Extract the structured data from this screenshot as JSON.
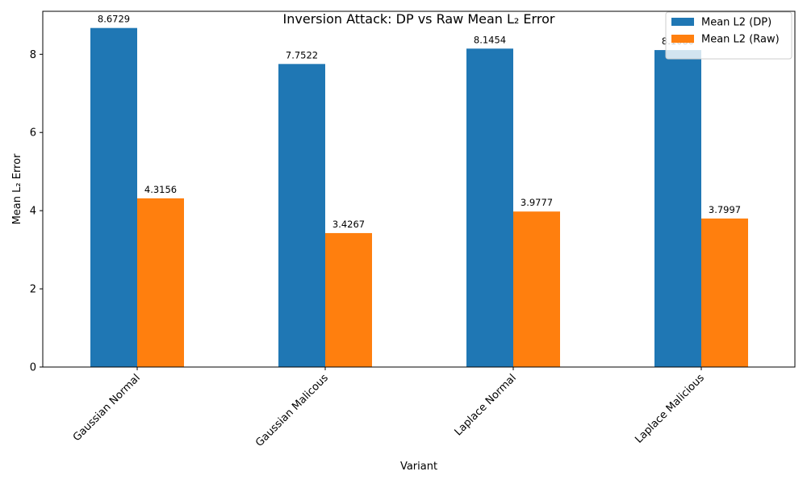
{
  "chart_data": {
    "type": "bar",
    "title": "Inversion Attack: DP vs Raw Mean L₂ Error",
    "xlabel": "Variant",
    "ylabel": "Mean L₂ Error",
    "categories": [
      "Gaussian Normal",
      "Gaussian Malicous",
      "Laplace Normal",
      "Laplace Malicious"
    ],
    "series": [
      {
        "name": "Mean L2 (DP)",
        "color": "#1f77b4",
        "values": [
          8.6729,
          7.7522,
          8.1454,
          8.108
        ],
        "labels": [
          "8.6729",
          "7.7522",
          "8.1454",
          "8.1080"
        ]
      },
      {
        "name": "Mean L2 (Raw)",
        "color": "#ff7f0e",
        "values": [
          4.3156,
          3.4267,
          3.9777,
          3.7997
        ],
        "labels": [
          "4.3156",
          "3.4267",
          "3.9777",
          "3.7997"
        ]
      }
    ],
    "ylim": [
      0,
      9.1
    ],
    "yticks": [
      0,
      2,
      4,
      6,
      8
    ],
    "ytick_labels": [
      "0",
      "2",
      "4",
      "6",
      "8"
    ],
    "xtick_rotation": 45,
    "grid": false,
    "legend_position": "top-right"
  }
}
